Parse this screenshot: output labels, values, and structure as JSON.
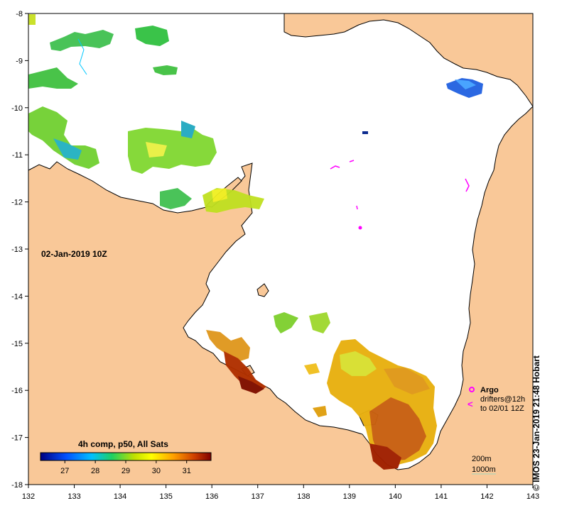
{
  "map": {
    "timestamp_label": "02-Jan-2019 10Z",
    "lon_ticks": [
      "132",
      "133",
      "134",
      "135",
      "136",
      "137",
      "138",
      "139",
      "140",
      "141",
      "142",
      "143"
    ],
    "lat_ticks": [
      "-8",
      "-9",
      "-10",
      "-11",
      "-12",
      "-13",
      "-14",
      "-15",
      "-16",
      "-17",
      "-18"
    ],
    "lon_range": [
      132,
      143
    ],
    "lat_range": [
      -18,
      -8
    ],
    "colors": {
      "land": "#f9c898",
      "sea_no_data": "#ffffff",
      "coastline": "#000000",
      "river": "#00c8ff",
      "argo_marker": "#ff00ff"
    }
  },
  "legend": {
    "title": "4h comp, p50, All Sats",
    "ticks": [
      "27",
      "28",
      "29",
      "30",
      "31"
    ],
    "range_min": 26.2,
    "range_max": 31.8,
    "tick_values": [
      27,
      28,
      29,
      30,
      31
    ]
  },
  "float_legend": {
    "argo": "Argo",
    "drifters_line1": "drifters@12h",
    "drifters_line2": "to 02/01 12Z",
    "drifter_symbol": "<"
  },
  "depth_legend": {
    "line1": "200m",
    "line2": "1000m"
  },
  "credit": "© IMOS 23-Jan-2019 21:48 Hobart"
}
